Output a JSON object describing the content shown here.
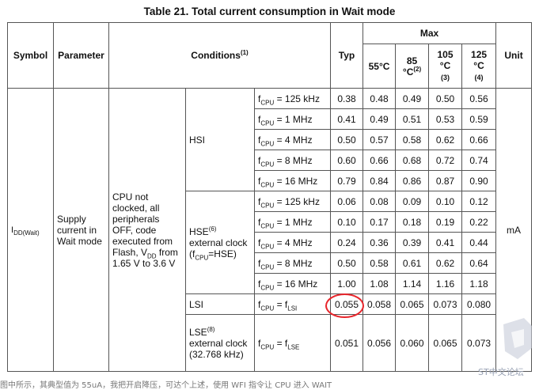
{
  "title": "Table 21. Total current consumption in Wait mode",
  "header": {
    "symbol": "Symbol",
    "parameter": "Parameter",
    "conditions": "Conditions",
    "conditions_note": "(1)",
    "typ": "Typ",
    "max": "Max",
    "unit": "Unit",
    "t55": "55°C",
    "t85": "85 °C",
    "t85_note": "(2)",
    "t105": "105 °C",
    "t105_note": "(3)",
    "t125": "125 °C",
    "t125_note": "(4)"
  },
  "symbol": {
    "main": "I",
    "sub": "DD(Wait)"
  },
  "parameter": "Supply current in Wait mode",
  "condition_main": {
    "line1": "CPU not clocked, all peripherals OFF, code executed from Flash, V",
    "vdd_sub": "DD",
    "line2": " from 1.65 V to 3.6 V"
  },
  "unit": "mA",
  "groups": [
    {
      "label": "HSI",
      "note": ""
    },
    {
      "label": "HSE",
      "note": "(6)",
      "extra": "external clock (f",
      "extra_sub": "CPU",
      "extra_end": "=HSE)"
    },
    {
      "label": "LSI",
      "note": ""
    },
    {
      "label": "LSE",
      "note": "(8)",
      "extra": "external clock (32.768 kHz)"
    }
  ],
  "rows": [
    {
      "freq": "= 125 kHz",
      "typ": "0.38",
      "t55": "0.48",
      "t85": "0.49",
      "t105": "0.50",
      "t125": "0.56"
    },
    {
      "freq": "= 1 MHz",
      "typ": "0.41",
      "t55": "0.49",
      "t85": "0.51",
      "t105": "0.53",
      "t125": "0.59"
    },
    {
      "freq": "= 4 MHz",
      "typ": "0.50",
      "t55": "0.57",
      "t85": "0.58",
      "t105": "0.62",
      "t125": "0.66"
    },
    {
      "freq": "= 8 MHz",
      "typ": "0.60",
      "t55": "0.66",
      "t85": "0.68",
      "t105": "0.72",
      "t125": "0.74"
    },
    {
      "freq": "= 16 MHz",
      "typ": "0.79",
      "t55": "0.84",
      "t85": "0.86",
      "t105": "0.87",
      "t125": "0.90"
    },
    {
      "freq": "= 125 kHz",
      "typ": "0.06",
      "t55": "0.08",
      "t85": "0.09",
      "t105": "0.10",
      "t125": "0.12"
    },
    {
      "freq": "= 1 MHz",
      "typ": "0.10",
      "t55": "0.17",
      "t85": "0.18",
      "t105": "0.19",
      "t125": "0.22"
    },
    {
      "freq": "= 4 MHz",
      "typ": "0.24",
      "t55": "0.36",
      "t85": "0.39",
      "t105": "0.41",
      "t125": "0.44"
    },
    {
      "freq": "= 8 MHz",
      "typ": "0.50",
      "t55": "0.58",
      "t85": "0.61",
      "t105": "0.62",
      "t125": "0.64"
    },
    {
      "freq": "= 16 MHz",
      "typ": "1.00",
      "t55": "1.08",
      "t85": "1.14",
      "t105": "1.16",
      "t125": "1.18"
    },
    {
      "freq": "= f",
      "freq_sub": "LSI",
      "typ": "0.055",
      "t55": "0.058",
      "t85": "0.065",
      "t105": "0.073",
      "t125": "0.080"
    },
    {
      "freq": "= f",
      "freq_sub": "LSE",
      "typ": "0.051",
      "t55": "0.056",
      "t85": "0.060",
      "t105": "0.065",
      "t125": "0.073"
    }
  ],
  "fcpu": {
    "f": "f",
    "sub": "CPU"
  },
  "highlight_color": "#e8262c",
  "watermark": "ST中文论坛",
  "footer_fragment": "图中所示，其典型值为 55uA，我把开启降压，可达个上述，使用 WFI 指令让 CPU 进入 WAIT"
}
